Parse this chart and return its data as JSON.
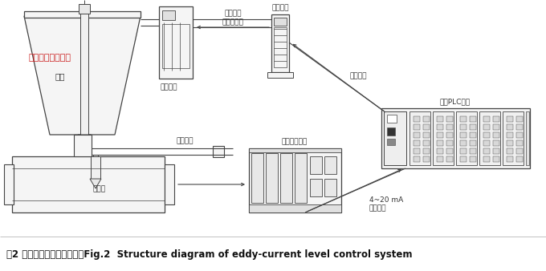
{
  "bg_color": "#ffffff",
  "caption": "图2 涡流液位控制系统结构图Fig.2  Structure diagram of eddy-current level control system",
  "caption_fontsize": 8.5,
  "watermark": "江苏华云流量计厂",
  "watermark_color": "#cc2222",
  "labels": {
    "saipeng": "塞棒",
    "servo": "伺服机构",
    "bracket": "支架悬臂",
    "sensor": "传感器",
    "drive": "驱动装置",
    "power_cable": "动力电缆",
    "encoder_cable": "编码器电缆",
    "comm_cable": "通讯电缆",
    "eddy_meter": "涡流液位仪表",
    "plc": "液位PLC系统",
    "signal": "4~20 mA\n液位信号"
  },
  "line_color": "#444444",
  "box_color": "#555555"
}
